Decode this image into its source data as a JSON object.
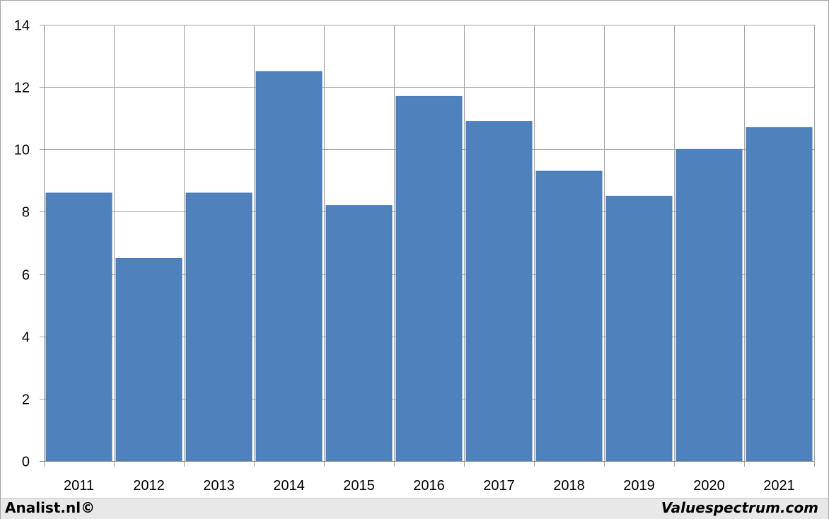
{
  "chart_data": {
    "type": "bar",
    "categories": [
      "2011",
      "2012",
      "2013",
      "2014",
      "2015",
      "2016",
      "2017",
      "2018",
      "2019",
      "2020",
      "2021"
    ],
    "values": [
      8.6,
      6.5,
      8.6,
      12.5,
      8.2,
      11.7,
      10.9,
      9.3,
      8.5,
      10.0,
      10.7
    ],
    "title": "",
    "xlabel": "",
    "ylabel": "",
    "ylim": [
      0,
      14
    ],
    "yticks": [
      0,
      2,
      4,
      6,
      8,
      10,
      12,
      14
    ],
    "grid": true,
    "legend": "none",
    "bar_color": "#4f81bd"
  },
  "footer": {
    "left_text": "Analist.nl©",
    "right_text": "Valuespectrum.com"
  }
}
